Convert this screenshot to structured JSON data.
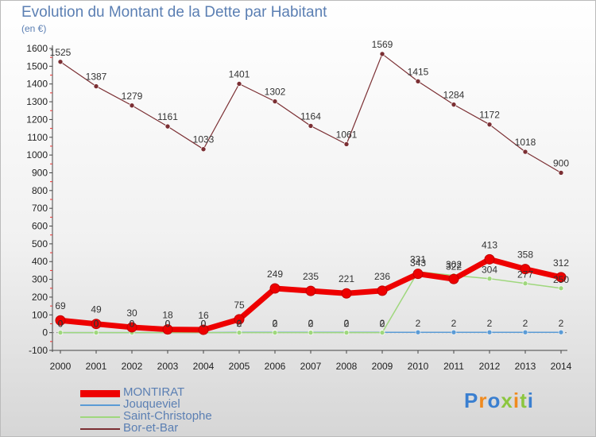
{
  "page": {
    "title": "Evolution du Montant de la Dette par Habitant",
    "subtitle": "(en €)"
  },
  "brand": {
    "text": "Proxiti",
    "colors": [
      "#3a7fd0",
      "#f08a1e",
      "#8cc63f"
    ]
  },
  "chart_data": {
    "type": "line",
    "title": "Evolution du Montant de la Dette par Habitant",
    "ylabel": "(en €)",
    "xlabel": "",
    "x": [
      "2000",
      "2001",
      "2002",
      "2003",
      "2004",
      "2005",
      "2006",
      "2007",
      "2008",
      "2009",
      "2010",
      "2011",
      "2012",
      "2013",
      "2014"
    ],
    "ylim": [
      -100,
      1600
    ],
    "yticks": [
      -100,
      0,
      100,
      200,
      300,
      400,
      500,
      600,
      700,
      800,
      900,
      1000,
      1100,
      1200,
      1300,
      1400,
      1500,
      1600
    ],
    "grid": false,
    "legend_position": "bottom-left",
    "series": [
      {
        "name": "MONTIRAT",
        "color": "#ee0000",
        "values": [
          69,
          49,
          30,
          18,
          16,
          75,
          249,
          235,
          221,
          236,
          331,
          302,
          413,
          358,
          312
        ]
      },
      {
        "name": "Jouqueviel",
        "color": "#5b9bd5",
        "values": [
          0,
          0,
          0,
          0,
          0,
          2,
          2,
          2,
          2,
          2,
          2,
          2,
          2,
          2,
          2
        ]
      },
      {
        "name": "Saint-Christophe",
        "color": "#9fd77d",
        "values": [
          0,
          0,
          0,
          0,
          0,
          0,
          0,
          0,
          0,
          0,
          343,
          322,
          304,
          277,
          250
        ]
      },
      {
        "name": "Bor-et-Bar",
        "color": "#7b2f33",
        "values": [
          1525,
          1387,
          1279,
          1161,
          1033,
          1401,
          1302,
          1164,
          1061,
          1569,
          1415,
          1284,
          1172,
          1018,
          900
        ]
      }
    ],
    "data_labels": [
      {
        "series": "MONTIRAT",
        "labels": [
          "69",
          "49",
          "30",
          "18",
          "16",
          "75",
          "249",
          "235",
          "221",
          "236",
          "331",
          "302",
          "413",
          "358",
          "312"
        ]
      },
      {
        "series": "Jouqueviel",
        "labels": [
          "0",
          "0",
          "0",
          "0",
          "0",
          "2",
          "2",
          "2",
          "2",
          "2",
          "2",
          "2",
          "2",
          "2",
          "2"
        ]
      },
      {
        "series": "Saint-Christophe",
        "labels": [
          "0",
          "0",
          "0",
          "0",
          "0",
          "0",
          "0",
          "0",
          "0",
          "0",
          "343",
          "322",
          "304",
          "277",
          "250"
        ]
      },
      {
        "series": "Bor-et-Bar",
        "labels": [
          "1525",
          "1387",
          "1279",
          "1161",
          "1033",
          "1401",
          "1302",
          "1164",
          "1061",
          "1569",
          "1415",
          "1284",
          "1172",
          "1018",
          "900"
        ]
      }
    ]
  }
}
